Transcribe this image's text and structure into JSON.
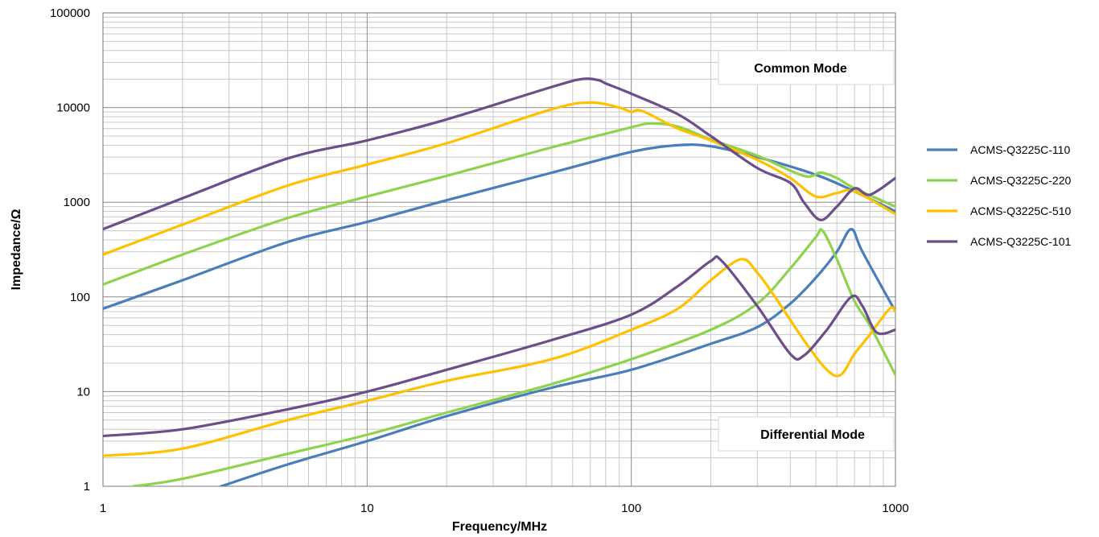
{
  "chart_data": {
    "type": "line",
    "title": "",
    "xlabel": "Frequency/MHz",
    "ylabel": "Impedance/Ω",
    "xscale": "log",
    "yscale": "log",
    "xlim": [
      1,
      1000
    ],
    "ylim": [
      1,
      100000
    ],
    "x_ticks": [
      "1",
      "10",
      "100",
      "1000"
    ],
    "y_ticks": [
      "1",
      "10",
      "100",
      "1000",
      "10000",
      "100000"
    ],
    "grid": true,
    "legend_position": "right",
    "annotations": [
      "Common Mode",
      "Differential Mode"
    ],
    "series": [
      {
        "name": "ACMS-Q3225C-110",
        "color": "#4a7ebb",
        "common_mode": {
          "x": [
            1,
            2,
            5,
            10,
            20,
            50,
            100,
            150,
            200,
            300,
            500,
            700,
            1000
          ],
          "y": [
            75,
            150,
            380,
            620,
            1050,
            2050,
            3400,
            4000,
            3900,
            3000,
            1950,
            1300,
            800
          ]
        },
        "differential_mode": {
          "x": [
            2.8,
            5,
            10,
            20,
            50,
            100,
            200,
            300,
            400,
            500,
            600,
            680,
            750,
            1000
          ],
          "y": [
            1,
            1.7,
            3,
            5.5,
            11,
            17,
            32,
            48,
            85,
            160,
            300,
            520,
            300,
            70
          ]
        }
      },
      {
        "name": "ACMS-Q3225C-220",
        "color": "#8ed34d",
        "common_mode": {
          "x": [
            1,
            2,
            5,
            10,
            20,
            50,
            100,
            120,
            150,
            200,
            300,
            450,
            520,
            600,
            700,
            1000
          ],
          "y": [
            135,
            280,
            680,
            1150,
            1900,
            3800,
            6200,
            6800,
            6300,
            4600,
            3100,
            1900,
            2050,
            1800,
            1400,
            900
          ]
        },
        "differential_mode": {
          "x": [
            1.3,
            2,
            5,
            10,
            20,
            50,
            100,
            200,
            300,
            400,
            500,
            530,
            600,
            700,
            800,
            1000
          ],
          "y": [
            1,
            1.2,
            2.2,
            3.5,
            6,
            12,
            22,
            45,
            85,
            200,
            430,
            500,
            250,
            90,
            50,
            15
          ]
        }
      },
      {
        "name": "ACMS-Q3225C-510",
        "color": "#ffc000",
        "common_mode": {
          "x": [
            1,
            2,
            5,
            10,
            20,
            50,
            70,
            90,
            100,
            110,
            150,
            200,
            300,
            400,
            500,
            600,
            700,
            1000
          ],
          "y": [
            280,
            580,
            1500,
            2500,
            4200,
            9600,
            11300,
            10000,
            9000,
            9200,
            6000,
            4500,
            2800,
            1800,
            1150,
            1250,
            1300,
            750
          ]
        },
        "differential_mode": {
          "x": [
            1,
            2,
            5,
            10,
            20,
            50,
            100,
            150,
            200,
            260,
            300,
            350,
            450,
            550,
            620,
            700,
            800,
            950,
            1000
          ],
          "y": [
            2.1,
            2.5,
            5,
            8,
            13,
            22,
            45,
            75,
            150,
            250,
            180,
            100,
            35,
            17,
            15,
            25,
            40,
            75,
            70
          ]
        }
      },
      {
        "name": "ACMS-Q3225C-101",
        "color": "#6b4e8a",
        "common_mode": {
          "x": [
            1,
            2,
            5,
            10,
            20,
            50,
            65,
            75,
            80,
            100,
            150,
            200,
            300,
            400,
            450,
            520,
            600,
            700,
            800,
            1000
          ],
          "y": [
            520,
            1100,
            2900,
            4500,
            7500,
            16500,
            20000,
            19500,
            18000,
            14000,
            8500,
            5000,
            2300,
            1600,
            1000,
            650,
            900,
            1400,
            1200,
            1800
          ]
        },
        "differential_mode": {
          "x": [
            1,
            2,
            5,
            10,
            20,
            50,
            100,
            150,
            200,
            220,
            300,
            400,
            450,
            550,
            680,
            750,
            850,
            1000
          ],
          "y": [
            3.4,
            4,
            6.5,
            10,
            17,
            35,
            65,
            130,
            240,
            240,
            80,
            25,
            24,
            45,
            100,
            80,
            42,
            45
          ]
        }
      }
    ]
  }
}
